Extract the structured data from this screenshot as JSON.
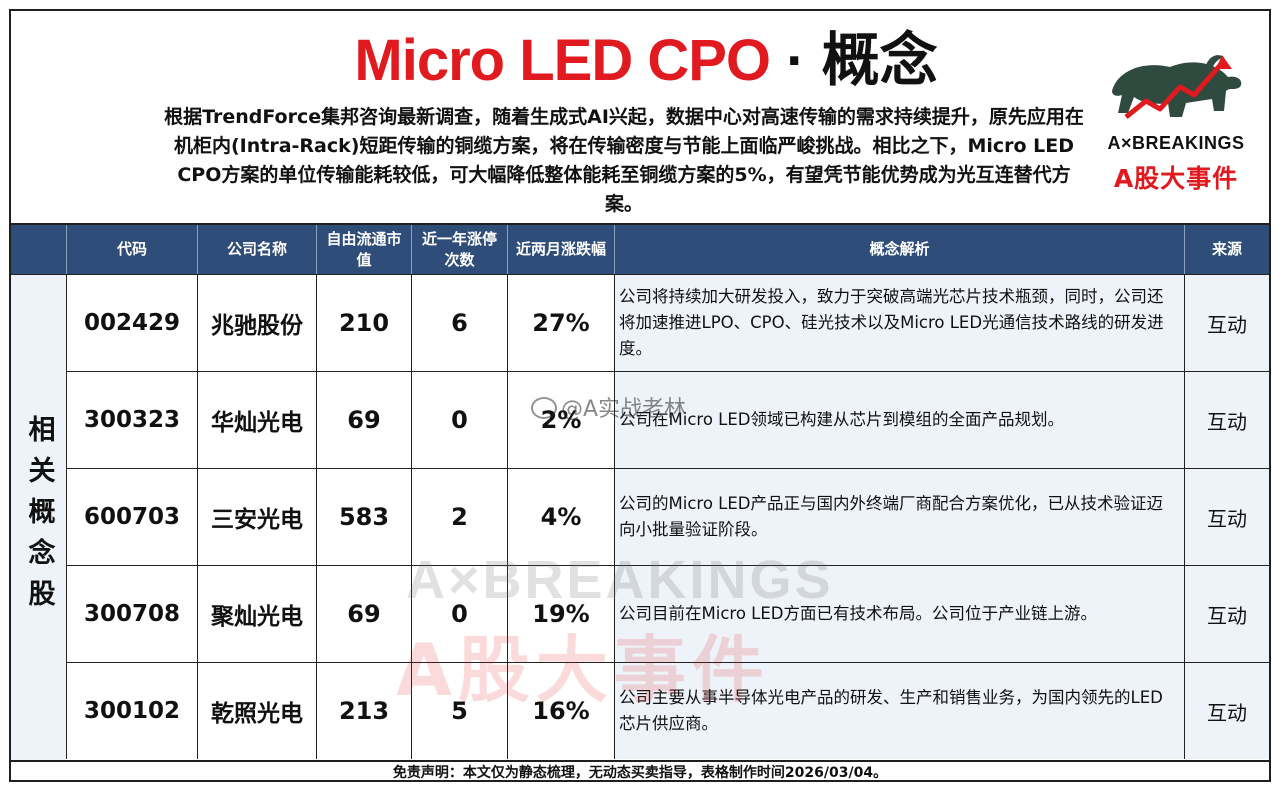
{
  "header": {
    "title_red": "Micro LED CPO",
    "title_sep": " · ",
    "title_black": "概念",
    "description": "根据TrendForce集邦咨询最新调查，随着生成式AI兴起，数据中心对高速传输的需求持续提升，原先应用在机柜内(Intra-Rack)短距传输的铜缆方案，将在传输密度与节能上面临严峻挑战。相比之下，Micro LED CPO方案的单位传输能耗较低，可大幅降低整体能耗至铜缆方案的5%，有望凭节能优势成为光互连替代方案。"
  },
  "logo": {
    "brand_en": "A×BREAKINGS",
    "brand_cn": "A股大事件"
  },
  "table": {
    "columns": [
      "代码",
      "公司名称",
      "自由流通市值",
      "近一年涨停次数",
      "近两月涨跌幅",
      "概念解析",
      "来源"
    ],
    "side_label": "相关概念股",
    "rows": [
      {
        "code": "002429",
        "name": "兆驰股份",
        "mcap": "210",
        "limit_ups": "6",
        "change": "27%",
        "desc": "公司将持续加大研发投入，致力于突破高端光芯片技术瓶颈，同时，公司还将加速推进LPO、CPO、硅光技术以及Micro LED光通信技术路线的研发进度。",
        "source": "互动"
      },
      {
        "code": "300323",
        "name": "华灿光电",
        "mcap": "69",
        "limit_ups": "0",
        "change": "2%",
        "desc": "公司在Micro LED领域已构建从芯片到模组的全面产品规划。",
        "source": "互动"
      },
      {
        "code": "600703",
        "name": "三安光电",
        "mcap": "583",
        "limit_ups": "2",
        "change": "4%",
        "desc": "公司的Micro LED产品正与国内外终端厂商配合方案优化，已从技术验证迈向小批量验证阶段。",
        "source": "互动"
      },
      {
        "code": "300708",
        "name": "聚灿光电",
        "mcap": "69",
        "limit_ups": "0",
        "change": "19%",
        "desc": "公司目前在Micro LED方面已有技术布局。公司位于产业链上游。",
        "source": "互动"
      },
      {
        "code": "300102",
        "name": "乾照光电",
        "mcap": "213",
        "limit_ups": "5",
        "change": "16%",
        "desc": "公司主要从事半导体光电产品的研发、生产和销售业务，为国内领先的LED芯片供应商。",
        "source": "互动"
      }
    ]
  },
  "footer": {
    "disclaimer": "免责声明：本文仅为静态梳理，无动态买卖指导，表格制作时间2026/03/04。"
  },
  "watermark": {
    "weibo": "@A实战老林",
    "brand_en": "A×BREAKINGS",
    "brand_cn": "A股大事件"
  }
}
